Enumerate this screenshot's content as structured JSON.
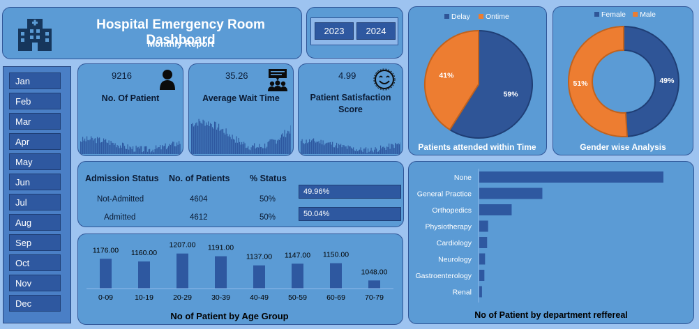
{
  "header": {
    "title": "Hospital Emergency Room Dashboard",
    "subtitle": "Monthly Report",
    "logo_icon": "hospital-icon"
  },
  "years": [
    "2023",
    "2024"
  ],
  "months": [
    "Jan",
    "Feb",
    "Mar",
    "Apr",
    "May",
    "Jun",
    "Jul",
    "Aug",
    "Sep",
    "Oct",
    "Nov",
    "Dec"
  ],
  "kpis": {
    "patients": {
      "value": "9216",
      "label": "No. Of Patient",
      "icon": "person-icon"
    },
    "wait": {
      "value": "35.26",
      "label": "Average Wait Time",
      "icon": "group-chat-icon"
    },
    "satisfaction": {
      "value": "4.99",
      "label_line1": "Patient Satisfaction",
      "label_line2": "Score",
      "icon": "smiley-icon"
    }
  },
  "admission": {
    "headers": [
      "Admission Status",
      "No. of Patients",
      "% Status"
    ],
    "rows": [
      {
        "status": "Not-Admitted",
        "count": "4604",
        "percent": "50%",
        "bar_label": "49.96%"
      },
      {
        "status": "Admitted",
        "count": "4612",
        "percent": "50%",
        "bar_label": "50.04%"
      }
    ]
  },
  "colors": {
    "panel": "#5b9bd5",
    "navy": "#2f5597",
    "orange": "#ed7d31",
    "bar": "#2e58a0",
    "background": "#9dc3f0"
  },
  "chart_data": [
    {
      "type": "pie",
      "title": "Patients attended within Time",
      "legend": "top",
      "slices": [
        {
          "name": "Delay",
          "value": 59,
          "label": "59%",
          "color": "#2f5597"
        },
        {
          "name": "Ontime",
          "value": 41,
          "label": "41%",
          "color": "#ed7d31"
        }
      ]
    },
    {
      "type": "pie",
      "subtype": "donut",
      "title": "Gender wise Analysis",
      "legend": "top",
      "slices": [
        {
          "name": "Female",
          "value": 49,
          "label": "49%",
          "color": "#2f5597"
        },
        {
          "name": "Male",
          "value": 51,
          "label": "51%",
          "color": "#ed7d31"
        }
      ]
    },
    {
      "type": "bar",
      "title": "No of Patient by Age Group",
      "categories": [
        "0-09",
        "10-19",
        "20-29",
        "30-39",
        "40-49",
        "50-59",
        "60-69",
        "70-79"
      ],
      "values": [
        1176,
        1160,
        1207,
        1191,
        1137,
        1147,
        1150,
        1048
      ],
      "labels": [
        "1176.00",
        "1160.00",
        "1207.00",
        "1191.00",
        "1137.00",
        "1147.00",
        "1150.00",
        "1048.00"
      ],
      "ylim": [
        1000,
        1210
      ],
      "grid": false
    },
    {
      "type": "bar",
      "orientation": "horizontal",
      "title": "No of Patient by department reffereal",
      "categories": [
        "None",
        "General Practice",
        "Orthopedics",
        "Physiotherapy",
        "Cardiology",
        "Neurology",
        "Gastroenterology",
        "Renal"
      ],
      "values": [
        5400,
        1850,
        950,
        260,
        230,
        170,
        150,
        80
      ],
      "grid": false
    }
  ]
}
